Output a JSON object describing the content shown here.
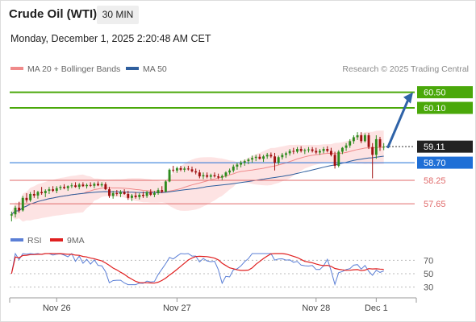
{
  "header": {
    "title": "Crude Oil (WTI)",
    "timeframe": "30 MIN",
    "datetime": "Monday, December 1, 2025 2:20:48 AM CET",
    "source": "Research © 2025 Trading Central"
  },
  "legend": {
    "ma20": {
      "label": "MA 20 + Bollinger Bands",
      "color": "#f08a8a"
    },
    "ma50": {
      "label": "MA 50",
      "color": "#2f5f9e"
    },
    "rsi": {
      "label": "RSI",
      "color": "#5b7fd6"
    },
    "ma9": {
      "label": "9MA",
      "color": "#e02020"
    }
  },
  "colors": {
    "bull": "#2e8b1e",
    "bear": "#a01010",
    "target_green": "#4aa80a",
    "pivot_blue": "#1f6fd6",
    "support_red": "#e06a6a",
    "arrow": "#2f63a8",
    "band_fill": "#fde3e3"
  },
  "chart_data": [
    {
      "type": "candlestick",
      "x_ticks": [
        "Nov 26",
        "Nov 27",
        "Nov 28",
        "Dec 1"
      ],
      "ylim": [
        57.2,
        60.8
      ],
      "last_price": {
        "value": "59.11"
      },
      "levels": [
        {
          "value": 60.5,
          "label": "60.50",
          "kind": "resistance"
        },
        {
          "value": 60.1,
          "label": "60.10",
          "kind": "resistance"
        },
        {
          "value": 58.7,
          "label": "58.70",
          "kind": "pivot"
        },
        {
          "value": 58.25,
          "label": "58.25",
          "kind": "support"
        },
        {
          "value": 57.65,
          "label": "57.65",
          "kind": "support"
        }
      ],
      "forecast_arrow": {
        "from": 59.1,
        "to": 60.5
      },
      "candles": [
        [
          57.35,
          57.45,
          57.2,
          57.38
        ],
        [
          57.38,
          57.6,
          57.3,
          57.55
        ],
        [
          57.55,
          57.7,
          57.42,
          57.48
        ],
        [
          57.48,
          57.85,
          57.45,
          57.8
        ],
        [
          57.8,
          57.92,
          57.68,
          57.74
        ],
        [
          57.74,
          57.95,
          57.7,
          57.9
        ],
        [
          57.9,
          58.0,
          57.8,
          57.86
        ],
        [
          57.86,
          57.98,
          57.78,
          57.95
        ],
        [
          57.95,
          58.08,
          57.88,
          57.92
        ],
        [
          57.92,
          58.02,
          57.82,
          57.98
        ],
        [
          57.98,
          58.08,
          57.9,
          58.02
        ],
        [
          58.02,
          58.1,
          57.95,
          57.98
        ],
        [
          57.98,
          58.1,
          57.92,
          58.05
        ],
        [
          58.05,
          58.12,
          58.0,
          58.08
        ],
        [
          58.08,
          58.15,
          58.02,
          58.05
        ],
        [
          58.05,
          58.12,
          57.98,
          58.1
        ],
        [
          58.1,
          58.18,
          58.05,
          58.12
        ],
        [
          58.12,
          58.2,
          58.06,
          58.08
        ],
        [
          58.08,
          58.18,
          58.02,
          58.14
        ],
        [
          58.14,
          58.2,
          58.08,
          58.1
        ],
        [
          58.1,
          58.17,
          58.04,
          58.13
        ],
        [
          58.13,
          58.2,
          58.08,
          58.11
        ],
        [
          58.11,
          58.2,
          58.05,
          58.16
        ],
        [
          58.16,
          58.22,
          58.1,
          58.12
        ],
        [
          58.12,
          58.2,
          58.08,
          58.15
        ],
        [
          58.15,
          58.2,
          58.0,
          58.02
        ],
        [
          58.02,
          58.08,
          57.8,
          57.85
        ],
        [
          57.85,
          57.98,
          57.78,
          57.92
        ],
        [
          57.92,
          58.0,
          57.85,
          57.9
        ],
        [
          57.9,
          58.0,
          57.82,
          57.95
        ],
        [
          57.95,
          58.02,
          57.88,
          57.9
        ],
        [
          57.9,
          57.98,
          57.75,
          57.8
        ],
        [
          57.8,
          57.9,
          57.72,
          57.86
        ],
        [
          57.86,
          57.95,
          57.78,
          57.82
        ],
        [
          57.82,
          57.92,
          57.76,
          57.88
        ],
        [
          57.88,
          57.96,
          57.8,
          57.85
        ],
        [
          57.85,
          57.98,
          57.8,
          57.95
        ],
        [
          57.95,
          58.02,
          57.85,
          57.88
        ],
        [
          57.88,
          57.98,
          57.82,
          57.92
        ],
        [
          57.92,
          58.05,
          57.88,
          58.0
        ],
        [
          58.0,
          58.1,
          57.92,
          57.96
        ],
        [
          57.96,
          58.25,
          57.94,
          58.22
        ],
        [
          58.22,
          58.55,
          58.2,
          58.52
        ],
        [
          58.52,
          58.62,
          58.45,
          58.5
        ],
        [
          58.5,
          58.6,
          58.44,
          58.56
        ],
        [
          58.56,
          58.62,
          58.48,
          58.52
        ],
        [
          58.52,
          58.6,
          58.46,
          58.55
        ],
        [
          58.55,
          58.62,
          58.5,
          58.53
        ],
        [
          58.53,
          58.6,
          58.45,
          58.48
        ],
        [
          58.48,
          58.55,
          58.4,
          58.45
        ],
        [
          58.45,
          58.52,
          58.3,
          58.35
        ],
        [
          58.35,
          58.45,
          58.28,
          58.38
        ],
        [
          58.38,
          58.45,
          58.3,
          58.34
        ],
        [
          58.34,
          58.42,
          58.28,
          58.38
        ],
        [
          58.38,
          58.45,
          58.32,
          58.35
        ],
        [
          58.35,
          58.42,
          58.28,
          58.32
        ],
        [
          58.32,
          58.4,
          58.26,
          58.36
        ],
        [
          58.36,
          58.48,
          58.32,
          58.45
        ],
        [
          58.45,
          58.55,
          58.4,
          58.5
        ],
        [
          58.5,
          58.65,
          58.45,
          58.6
        ],
        [
          58.6,
          58.7,
          58.52,
          58.65
        ],
        [
          58.65,
          58.75,
          58.58,
          58.7
        ],
        [
          58.7,
          58.78,
          58.62,
          58.74
        ],
        [
          58.74,
          58.82,
          58.66,
          58.78
        ],
        [
          58.78,
          58.88,
          58.7,
          58.82
        ],
        [
          58.82,
          58.9,
          58.74,
          58.85
        ],
        [
          58.85,
          58.92,
          58.78,
          58.8
        ],
        [
          58.8,
          58.9,
          58.72,
          58.86
        ],
        [
          58.86,
          58.95,
          58.8,
          58.9
        ],
        [
          58.9,
          58.96,
          58.82,
          58.86
        ],
        [
          58.86,
          58.95,
          58.5,
          58.7
        ],
        [
          58.7,
          58.88,
          58.65,
          58.84
        ],
        [
          58.84,
          58.95,
          58.78,
          58.9
        ],
        [
          58.9,
          58.98,
          58.82,
          58.94
        ],
        [
          58.94,
          59.05,
          58.88,
          59.0
        ],
        [
          59.0,
          59.08,
          58.92,
          58.98
        ],
        [
          58.98,
          59.1,
          58.94,
          59.05
        ],
        [
          59.05,
          59.12,
          58.96,
          59.0
        ],
        [
          59.0,
          59.06,
          58.92,
          59.02
        ],
        [
          59.02,
          59.1,
          58.96,
          59.04
        ],
        [
          59.04,
          59.1,
          58.96,
          59.0
        ],
        [
          59.0,
          59.08,
          58.92,
          58.96
        ],
        [
          58.96,
          59.05,
          58.9,
          59.0
        ],
        [
          59.0,
          59.1,
          58.94,
          59.05
        ],
        [
          59.05,
          59.12,
          58.96,
          59.0
        ],
        [
          59.0,
          59.08,
          58.86,
          58.9
        ],
        [
          58.9,
          58.98,
          58.55,
          58.62
        ],
        [
          58.62,
          59.02,
          58.58,
          58.98
        ],
        [
          58.98,
          59.1,
          58.92,
          59.08
        ],
        [
          59.08,
          59.2,
          59.0,
          59.14
        ],
        [
          59.14,
          59.3,
          59.08,
          59.25
        ],
        [
          59.25,
          59.4,
          59.18,
          59.35
        ],
        [
          59.35,
          59.48,
          59.28,
          59.4
        ],
        [
          59.4,
          59.48,
          59.2,
          59.25
        ],
        [
          59.25,
          59.45,
          59.22,
          59.4
        ],
        [
          59.4,
          59.46,
          59.05,
          59.1
        ],
        [
          59.1,
          59.2,
          58.3,
          58.9
        ],
        [
          58.9,
          59.4,
          58.8,
          59.3
        ],
        [
          59.3,
          59.36,
          59.0,
          59.1
        ],
        [
          59.1,
          59.2,
          59.02,
          59.11
        ]
      ]
    },
    {
      "type": "line",
      "name": "RSI",
      "yticks": [
        "70",
        "50",
        "30"
      ],
      "ylim": [
        20,
        80
      ]
    }
  ]
}
